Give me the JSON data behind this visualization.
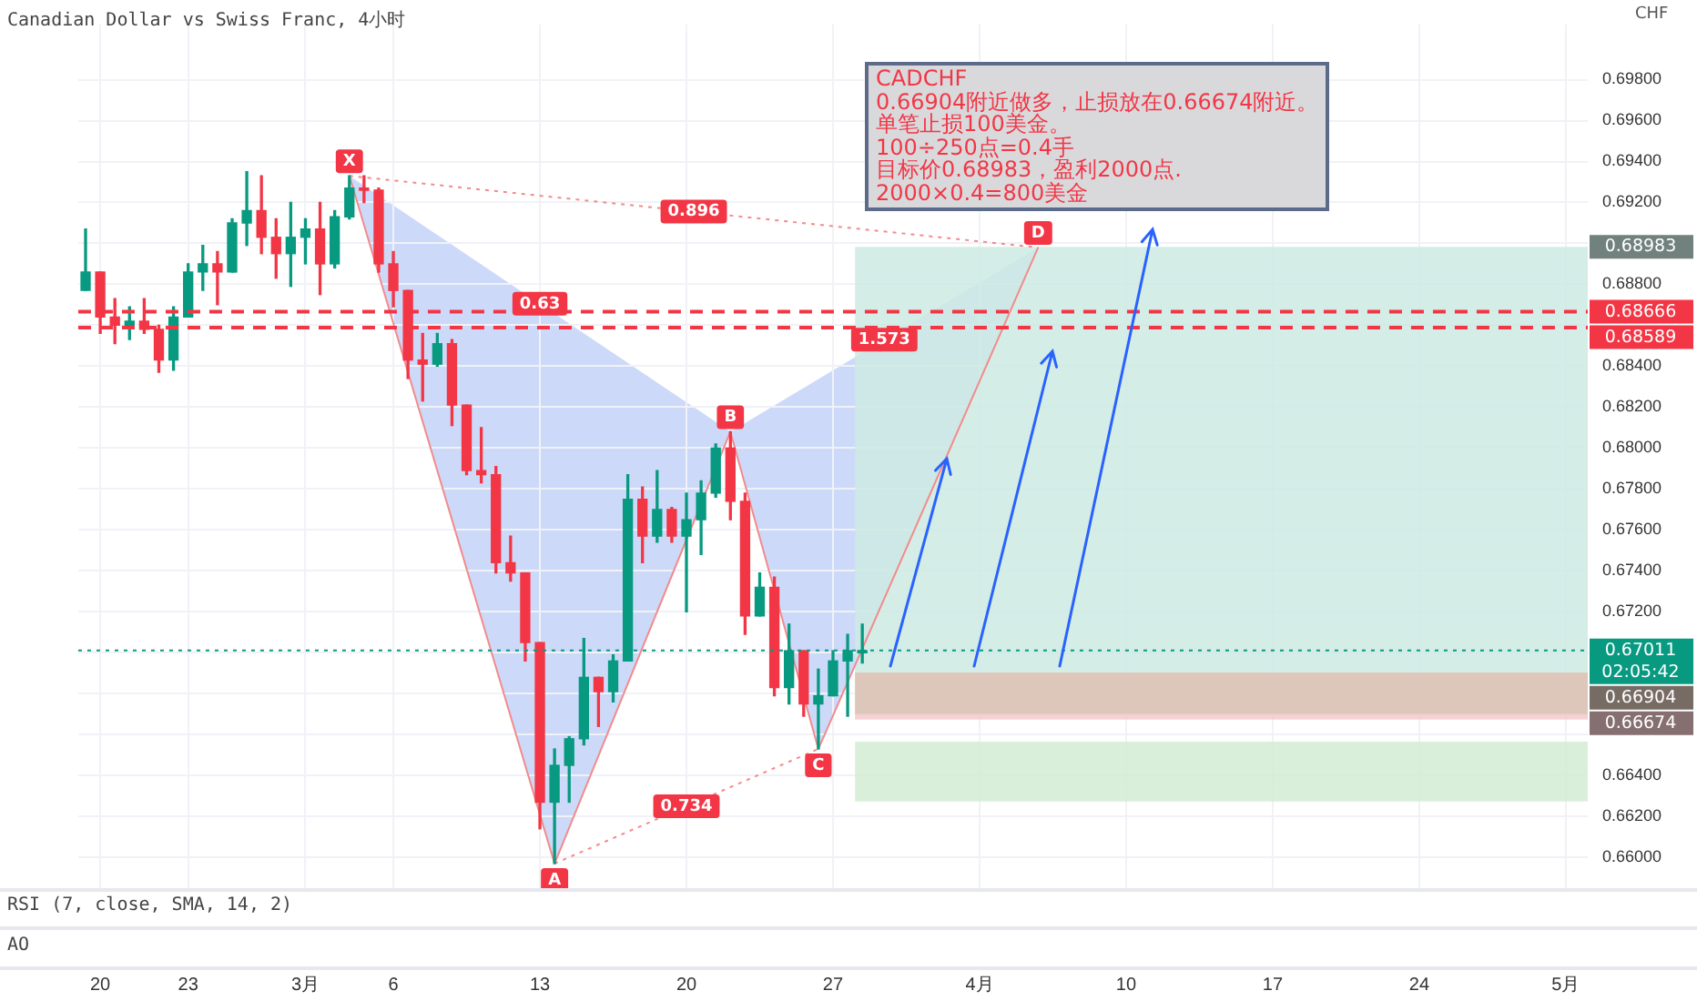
{
  "chart_data": {
    "type": "candlestick",
    "title": "Canadian Dollar vs Swiss Franc, 4小时",
    "ylabel": "CHF",
    "categories": [
      null,
      "20",
      null,
      null,
      null,
      null,
      null,
      "23",
      null,
      null,
      null,
      null,
      null,
      null,
      null,
      "3月",
      null,
      null,
      null,
      null,
      null,
      "6",
      null,
      null,
      null,
      null,
      null,
      null,
      null,
      null,
      null,
      "13",
      null,
      null,
      null,
      null,
      null,
      null,
      null,
      null,
      null,
      "20",
      null,
      null,
      null,
      null,
      null,
      null,
      null,
      null,
      null,
      "27",
      null,
      null,
      null,
      null,
      null,
      null,
      null,
      null,
      null,
      "4月",
      null,
      null,
      null,
      null,
      null,
      null,
      null,
      null,
      null,
      "10",
      null,
      null,
      null,
      null,
      null,
      null,
      null,
      null,
      null,
      "17",
      null,
      null,
      null,
      null,
      null,
      null,
      null,
      null,
      null,
      "24",
      null,
      null,
      null,
      null,
      null,
      null,
      null,
      null,
      null,
      "5月",
      null
    ],
    "ohlc": [
      [
        0.6877,
        0.6907,
        0.6877,
        0.6886
      ],
      [
        0.6886,
        0.6886,
        0.6856,
        0.6864
      ],
      [
        0.6864,
        0.6873,
        0.6851,
        0.686
      ],
      [
        0.686,
        0.6869,
        0.6853,
        0.6862
      ],
      [
        0.6862,
        0.6873,
        0.6856,
        0.6858
      ],
      [
        0.6858,
        0.686,
        0.6837,
        0.6843
      ],
      [
        0.6843,
        0.6869,
        0.6838,
        0.6864
      ],
      [
        0.6864,
        0.689,
        0.6864,
        0.6886
      ],
      [
        0.6886,
        0.6899,
        0.6877,
        0.689
      ],
      [
        0.689,
        0.6896,
        0.687,
        0.6886
      ],
      [
        0.6886,
        0.6912,
        0.6886,
        0.691
      ],
      [
        0.691,
        0.6935,
        0.6899,
        0.6916
      ],
      [
        0.6916,
        0.6933,
        0.6895,
        0.6903
      ],
      [
        0.6903,
        0.6912,
        0.6883,
        0.6895
      ],
      [
        0.6895,
        0.692,
        0.6879,
        0.6903
      ],
      [
        0.6903,
        0.6912,
        0.689,
        0.6907
      ],
      [
        0.6907,
        0.692,
        0.6875,
        0.689
      ],
      [
        0.689,
        0.6916,
        0.6888,
        0.6913
      ],
      [
        0.6913,
        0.6933,
        0.6912,
        0.6927
      ],
      [
        0.6927,
        0.6933,
        0.692,
        0.6926
      ],
      [
        0.6926,
        0.6927,
        0.6886,
        0.689
      ],
      [
        0.689,
        0.6896,
        0.6869,
        0.6877
      ],
      [
        0.6877,
        0.6877,
        0.6834,
        0.6843
      ],
      [
        0.6843,
        0.6856,
        0.6823,
        0.6841
      ],
      [
        0.6841,
        0.6856,
        0.684,
        0.6851
      ],
      [
        0.6851,
        0.6853,
        0.6811,
        0.6821
      ],
      [
        0.6821,
        0.6821,
        0.6787,
        0.6789
      ],
      [
        0.6789,
        0.681,
        0.6783,
        0.6787
      ],
      [
        0.6787,
        0.6791,
        0.6739,
        0.6744
      ],
      [
        0.6744,
        0.6757,
        0.6735,
        0.6739
      ],
      [
        0.6739,
        0.6739,
        0.6696,
        0.6705
      ],
      [
        0.6705,
        0.6705,
        0.6614,
        0.6627
      ],
      [
        0.6627,
        0.6653,
        0.6597,
        0.6645
      ],
      [
        0.6645,
        0.6659,
        0.6627,
        0.6658
      ],
      [
        0.6658,
        0.6707,
        0.6655,
        0.6688
      ],
      [
        0.6688,
        0.6688,
        0.6664,
        0.6681
      ],
      [
        0.6681,
        0.6699,
        0.6676,
        0.6696
      ],
      [
        0.6696,
        0.6787,
        0.6696,
        0.6775
      ],
      [
        0.6775,
        0.6781,
        0.6744,
        0.6757
      ],
      [
        0.6757,
        0.6789,
        0.6754,
        0.677
      ],
      [
        0.677,
        0.6771,
        0.6754,
        0.6757
      ],
      [
        0.6757,
        0.6778,
        0.672,
        0.6765
      ],
      [
        0.6765,
        0.6784,
        0.6748,
        0.6778
      ],
      [
        0.6778,
        0.6802,
        0.6776,
        0.68
      ],
      [
        0.68,
        0.6808,
        0.6765,
        0.6774
      ],
      [
        0.6774,
        0.6778,
        0.6709,
        0.6718
      ],
      [
        0.6718,
        0.6739,
        0.6718,
        0.6732
      ],
      [
        0.6732,
        0.6737,
        0.6679,
        0.6683
      ],
      [
        0.6683,
        0.6714,
        0.6675,
        0.6701
      ],
      [
        0.6701,
        0.6701,
        0.6669,
        0.6675
      ],
      [
        0.6675,
        0.6692,
        0.6653,
        0.6679
      ],
      [
        0.6679,
        0.6701,
        0.6679,
        0.6696
      ],
      [
        0.6696,
        0.6709,
        0.6669,
        0.6701
      ],
      [
        0.67,
        0.6714,
        0.6695,
        0.67011
      ],
      null,
      null,
      null,
      null,
      null,
      null,
      null,
      null,
      null,
      null,
      null,
      null,
      null,
      null,
      null,
      null,
      null,
      null,
      null,
      null,
      null,
      null,
      null,
      null,
      null,
      null,
      null,
      null,
      null,
      null,
      null,
      null,
      null,
      null,
      null,
      null,
      null,
      null,
      null,
      null,
      null,
      null,
      null,
      null,
      null,
      null,
      null,
      null,
      null
    ],
    "colors": [
      "#089981",
      "#f23645",
      "#f23645",
      "#089981",
      "#f23645",
      "#f23645",
      "#089981",
      "#089981",
      "#089981",
      "#f23645",
      "#089981",
      "#089981",
      "#f23645",
      "#f23645",
      "#089981",
      "#089981",
      "#f23645",
      "#089981",
      "#089981",
      "#f23645",
      "#f23645",
      "#f23645",
      "#f23645",
      "#f23645",
      "#089981",
      "#f23645",
      "#f23645",
      "#f23645",
      "#f23645",
      "#f23645",
      "#f23645",
      "#f23645",
      "#089981",
      "#089981",
      "#089981",
      "#f23645",
      "#089981",
      "#089981",
      "#f23645",
      "#089981",
      "#f23645",
      "#089981",
      "#089981",
      "#089981",
      "#f23645",
      "#f23645",
      "#089981",
      "#f23645",
      "#089981",
      "#f23645",
      "#089981",
      "#089981",
      "#089981",
      "#089981",
      null,
      null,
      null,
      null,
      null,
      null,
      null,
      null,
      null,
      null,
      null,
      null,
      null,
      null,
      null,
      null,
      null,
      null,
      null,
      null,
      null,
      null,
      null,
      null,
      null,
      null,
      null,
      null,
      null,
      null,
      null,
      null,
      null,
      null,
      null,
      null,
      null,
      null,
      null,
      null,
      null,
      null,
      null,
      null,
      null,
      null,
      null,
      null,
      null
    ],
    "series": [
      {
        "type": "line",
        "color": "#f28b8b",
        "values": [
          null,
          null,
          null,
          null,
          null,
          null,
          null,
          null,
          null,
          null,
          null,
          null,
          null,
          null,
          null,
          null,
          null,
          null,
          0.6933,
          null,
          null,
          null,
          null,
          null,
          null,
          null,
          null,
          null,
          null,
          null,
          null,
          null,
          0.6597,
          null,
          null,
          null,
          null,
          null,
          null,
          null,
          null,
          null,
          null,
          null,
          0.6808,
          null,
          null,
          null,
          null,
          null,
          0.6653,
          null,
          null,
          null,
          null,
          null,
          null,
          null,
          null,
          null,
          null,
          null,
          null,
          null,
          null,
          0.6898,
          null,
          null,
          null,
          null,
          null,
          null,
          null,
          null,
          null,
          null,
          null,
          null,
          null,
          null,
          null,
          null,
          null,
          null,
          null,
          null,
          null,
          null,
          null,
          null,
          null,
          null,
          null,
          null,
          null,
          null,
          null,
          null,
          null,
          null,
          null,
          null,
          null
        ]
      },
      {
        "type": "line",
        "color": "#f28b8b",
        "line_style": "dotted",
        "values": [
          null,
          null,
          null,
          null,
          null,
          null,
          null,
          null,
          null,
          null,
          null,
          null,
          null,
          null,
          null,
          null,
          null,
          null,
          0.6933,
          null,
          null,
          null,
          null,
          null,
          null,
          null,
          null,
          null,
          null,
          null,
          null,
          null,
          null,
          null,
          null,
          null,
          null,
          null,
          null,
          null,
          null,
          null,
          null,
          null,
          null,
          null,
          null,
          null,
          null,
          null,
          null,
          null,
          null,
          null,
          null,
          null,
          null,
          null,
          null,
          null,
          null,
          null,
          null,
          null,
          null,
          0.6898,
          null,
          null,
          null,
          null,
          null,
          null,
          null,
          null,
          null,
          null,
          null,
          null,
          null,
          null,
          null,
          null,
          null,
          null,
          null,
          null,
          null,
          null,
          null,
          null,
          null,
          null,
          null,
          null,
          null,
          null,
          null,
          null,
          null,
          null,
          null,
          null,
          null
        ]
      },
      {
        "type": "line",
        "color": "#f28b8b",
        "line_style": "dotted",
        "values": [
          null,
          null,
          null,
          null,
          null,
          null,
          null,
          null,
          null,
          null,
          null,
          null,
          null,
          null,
          null,
          null,
          null,
          null,
          null,
          null,
          null,
          null,
          null,
          null,
          null,
          null,
          null,
          null,
          null,
          null,
          null,
          null,
          0.6597,
          null,
          null,
          null,
          null,
          null,
          null,
          null,
          null,
          null,
          null,
          null,
          null,
          null,
          null,
          null,
          null,
          null,
          0.6653,
          null,
          null,
          null,
          null,
          null,
          null,
          null,
          null,
          null,
          null,
          null,
          null,
          null,
          null,
          null,
          null,
          null,
          null,
          null,
          null,
          null,
          null,
          null,
          null,
          null,
          null,
          null,
          null,
          null,
          null,
          null,
          null,
          null,
          null,
          null,
          null,
          null,
          null,
          null,
          null,
          null,
          null,
          null,
          null,
          null,
          null,
          null,
          null,
          null,
          null,
          null,
          null
        ]
      }
    ],
    "marker": "none",
    "ylim": [
      0.6585,
      0.7007
    ],
    "yticks": [
      {
        "value": 0.66,
        "label": "0.66000"
      },
      {
        "value": 0.662,
        "label": "0.66200"
      },
      {
        "value": 0.664,
        "label": "0.66400"
      },
      {
        "value": 0.666,
        "label": null
      },
      {
        "value": 0.668,
        "label": null
      },
      {
        "value": 0.67,
        "label": null
      },
      {
        "value": 0.672,
        "label": "0.67200"
      },
      {
        "value": 0.674,
        "label": "0.67400"
      },
      {
        "value": 0.676,
        "label": "0.67600"
      },
      {
        "value": 0.678,
        "label": "0.67800"
      },
      {
        "value": 0.68,
        "label": "0.68000"
      },
      {
        "value": 0.682,
        "label": "0.68200"
      },
      {
        "value": 0.684,
        "label": "0.68400"
      },
      {
        "value": 0.686,
        "label": null
      },
      {
        "value": 0.688,
        "label": "0.68800"
      },
      {
        "value": 0.69,
        "label": null
      },
      {
        "value": 0.692,
        "label": "0.69200"
      },
      {
        "value": 0.694,
        "label": "0.69400"
      },
      {
        "value": 0.696,
        "label": "0.69600"
      },
      {
        "value": 0.698,
        "label": "0.69800"
      }
    ],
    "grid": true,
    "legend": false,
    "ref_lines": [
      {
        "axis": "y",
        "value": 0.68666,
        "label": "0.68666",
        "color": "#f23645",
        "line_style": "dashed"
      },
      {
        "axis": "y",
        "value": 0.68589,
        "label": "0.68589",
        "color": "#f23645",
        "line_style": "dashed"
      },
      {
        "axis": "y",
        "value": 0.67011,
        "label": "0.67011",
        "color": "#089981",
        "line_style": "dotted"
      }
    ],
    "bands": [
      {
        "axis": "y",
        "from": 0.68983,
        "to": 0.66904,
        "label": "0.68983",
        "color": "#cdeae3"
      },
      {
        "axis": "y",
        "from": 0.66674,
        "to": 0.66904,
        "label": "0.66674",
        "color": "#f3c9cc"
      },
      {
        "axis": "y",
        "from": 0.66904,
        "to": 0.667,
        "label": "0.66904",
        "color": "#d8c5b5"
      },
      {
        "axis": "y",
        "from": 0.66566,
        "to": 0.66273,
        "color": "#d3ecd3"
      }
    ],
    "annotations": [
      "CADCHF",
      "0.66904附近做多，止损放在0.66674附近。",
      "单笔止损100美金。",
      "100÷250点=0.4手",
      "目标价0.68983，盈利2000点.",
      "2000×0.4=800美金",
      "RSI (7, close, SMA, 14, 2)",
      "AO",
      "02:05:42",
      "X",
      "A",
      "B",
      "C",
      "D",
      "0.896",
      "0.63",
      "1.573",
      "0.734"
    ]
  }
}
